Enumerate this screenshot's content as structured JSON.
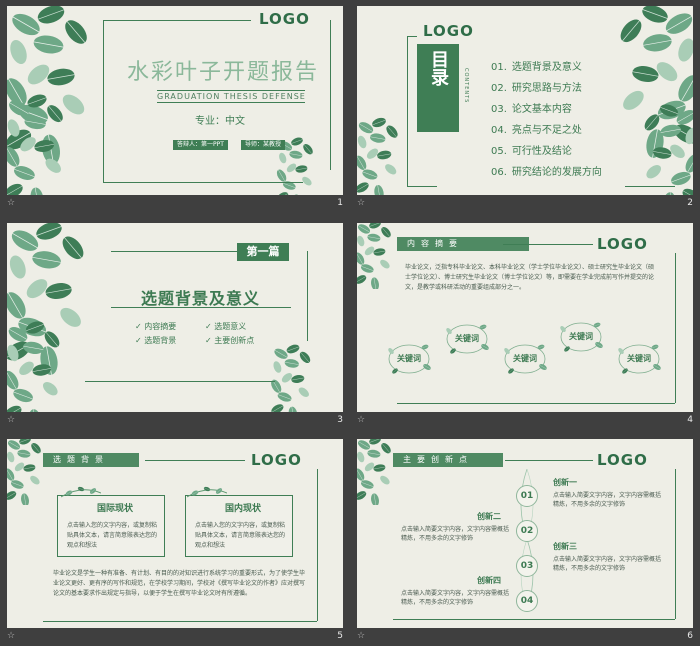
{
  "slides": [
    {
      "number": "1",
      "logo": "LOGO",
      "title": "水彩叶子开题报告",
      "subtitle": "GRADUATION THESIS DEFENSE",
      "major": "专业：中文",
      "tag_left": "答辩人：第一PPT",
      "tag_right": "导师：某教授"
    },
    {
      "number": "2",
      "logo": "LOGO",
      "toc_title": "目录",
      "toc_vertical": "CONTENTS",
      "items": [
        {
          "n": "01.",
          "text": "选题背景及意义"
        },
        {
          "n": "02.",
          "text": "研究思路与方法"
        },
        {
          "n": "03.",
          "text": "论文基本内容"
        },
        {
          "n": "04.",
          "text": "亮点与不足之处"
        },
        {
          "n": "05.",
          "text": "可行性及结论"
        },
        {
          "n": "06.",
          "text": "研究结论的发展方向"
        }
      ]
    },
    {
      "number": "3",
      "tag": "第一篇",
      "title": "选题背景及意义",
      "checks": [
        "内容摘要",
        "选题意义",
        "选题背景",
        "主要创新点"
      ]
    },
    {
      "number": "4",
      "logo": "LOGO",
      "header": "内容摘要",
      "paragraph": "毕业论文，泛指专科毕业论文、本科毕业论文（学士学位毕业论文）、硕士研究生毕业论文（硕士学位论文）、博士研究生毕业论文（博士学位论文）等，即需要在学业完成前写作并提交的论文，是教学或科研活动的重要组成部分之一。",
      "keywords": [
        "关键词",
        "关键词",
        "关键词",
        "关键词",
        "关键词"
      ]
    },
    {
      "number": "5",
      "logo": "LOGO",
      "header": "选题背景",
      "panels": [
        {
          "title": "国际现状",
          "text": "点击输入您的文字内容，或复制粘贴具体文本，请言简意赅表达您的观点和想法"
        },
        {
          "title": "国内现状",
          "text": "点击输入您的文字内容，或复制粘贴具体文本，请言简意赅表达您的观点和想法"
        }
      ],
      "paragraph": "毕业论文是学生一种有准备、有计划、有目的的对知识进行系统学习的重要形式，为了使学生毕业论文更好、更有序的写作和规范，在学校学习期间，学校对《撰写毕业论文的作者》应对撰写论文的基本要求作出规定与指导，以便于学生在撰写毕业论文时有所遵循。"
    },
    {
      "number": "6",
      "logo": "LOGO",
      "header": "主要创新点",
      "steps": [
        "01",
        "02",
        "03",
        "04"
      ],
      "innovations": [
        {
          "title": "创新一",
          "text": "点击输入简要文字内容，文字内容需概括精炼，不用多余的文字修饰"
        },
        {
          "title": "创新二",
          "text": "点击输入简要文字内容，文字内容需概括精炼，不用多余的文字修饰"
        },
        {
          "title": "创新三",
          "text": "点击输入简要文字内容，文字内容需概括精炼，不用多余的文字修饰"
        },
        {
          "title": "创新四",
          "text": "点击输入简要文字内容，文字内容需概括精炼，不用多余的文字修饰"
        }
      ]
    }
  ],
  "star_icon": "☆",
  "colors": {
    "accent": "#3f7e55",
    "slide_bg": "#eeeee6",
    "backdrop": "#3f3f3f"
  }
}
